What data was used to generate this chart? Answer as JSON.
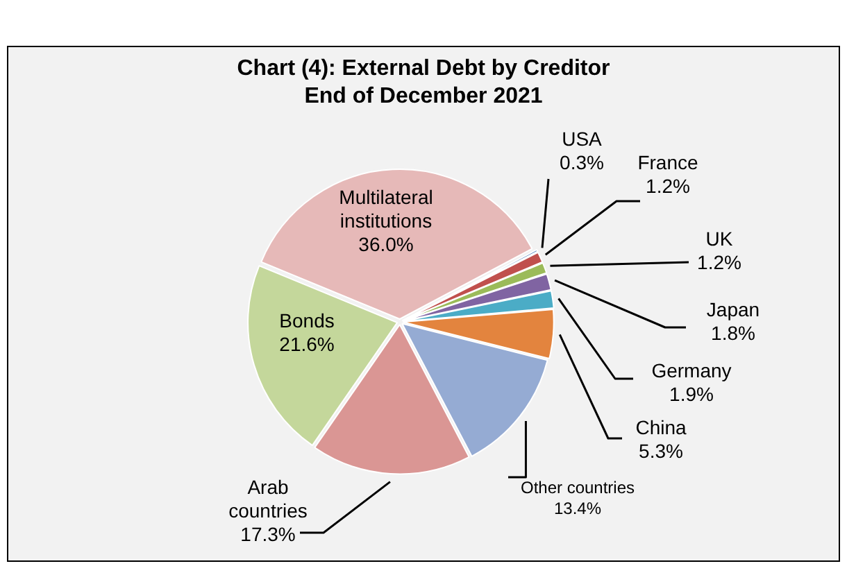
{
  "chart_data": {
    "type": "pie",
    "title": "Chart (4): External Debt by Creditor\nEnd of December 2021",
    "categories": [
      "USA",
      "France",
      "UK",
      "Japan",
      "Germany",
      "China",
      "Other countries",
      "Arab countries",
      "Bonds",
      "Multilateral institutions"
    ],
    "values": [
      0.3,
      1.2,
      1.2,
      1.8,
      1.9,
      5.3,
      13.4,
      17.3,
      21.6,
      36.0
    ],
    "value_labels": [
      "0.3%",
      "1.2%",
      "1.2%",
      "1.8%",
      "1.9%",
      "5.3%",
      "13.4%",
      "17.3%",
      "21.6%",
      "36.0%"
    ],
    "colors": [
      "#4f81bd",
      "#c0504d",
      "#9bbb59",
      "#8064a2",
      "#4bacc6",
      "#e3843e",
      "#95abd3",
      "#da9694",
      "#c4d79b",
      "#e6b9b8"
    ],
    "legend": false
  }
}
